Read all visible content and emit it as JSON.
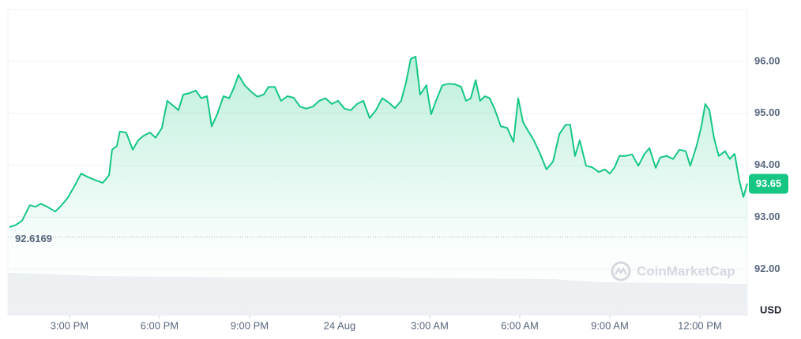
{
  "chart_data": {
    "type": "line",
    "color": "#16c784",
    "unit": "USD",
    "watermark": "CoinMarketCap",
    "open_price": 92.6169,
    "last_price": 93.65,
    "x": [
      13.0,
      13.21,
      13.42,
      13.68,
      13.87,
      14.05,
      14.26,
      14.53,
      14.74,
      14.95,
      15.18,
      15.39,
      15.63,
      15.84,
      16.11,
      16.32,
      16.42,
      16.58,
      16.68,
      16.89,
      17.11,
      17.29,
      17.47,
      17.68,
      17.87,
      18.08,
      18.26,
      18.47,
      18.63,
      18.79,
      19.0,
      19.21,
      19.39,
      19.58,
      19.74,
      19.92,
      20.13,
      20.32,
      20.47,
      20.63,
      20.84,
      21.05,
      21.26,
      21.47,
      21.63,
      21.84,
      22.05,
      22.26,
      22.47,
      22.68,
      22.89,
      23.11,
      23.32,
      23.53,
      23.74,
      23.95,
      24.16,
      24.37,
      24.58,
      24.79,
      25.0,
      25.21,
      25.42,
      25.63,
      25.84,
      26.05,
      26.21,
      26.37,
      26.53,
      26.68,
      26.89,
      27.05,
      27.21,
      27.42,
      27.63,
      27.84,
      28.05,
      28.21,
      28.37,
      28.53,
      28.68,
      28.84,
      29.0,
      29.16,
      29.37,
      29.58,
      29.79,
      29.95,
      30.11,
      30.26,
      30.47,
      30.68,
      30.89,
      31.11,
      31.32,
      31.53,
      31.68,
      31.84,
      32.0,
      32.21,
      32.42,
      32.63,
      32.84,
      33.0,
      33.16,
      33.32,
      33.53,
      33.74,
      33.95,
      34.16,
      34.32,
      34.53,
      34.68,
      34.89,
      35.11,
      35.32,
      35.53,
      35.68,
      35.89,
      36.05,
      36.18,
      36.32,
      36.47,
      36.63,
      36.84,
      37.0,
      37.16,
      37.32,
      37.45,
      37.58
    ],
    "values": [
      92.81,
      92.85,
      92.93,
      93.23,
      93.2,
      93.26,
      93.2,
      93.11,
      93.23,
      93.38,
      93.61,
      93.84,
      93.77,
      93.72,
      93.66,
      93.81,
      94.3,
      94.37,
      94.65,
      94.63,
      94.3,
      94.48,
      94.57,
      94.63,
      94.53,
      94.72,
      95.24,
      95.14,
      95.06,
      95.36,
      95.39,
      95.44,
      95.29,
      95.33,
      94.75,
      94.98,
      95.33,
      95.29,
      95.48,
      95.74,
      95.54,
      95.42,
      95.32,
      95.36,
      95.51,
      95.51,
      95.24,
      95.33,
      95.3,
      95.13,
      95.09,
      95.13,
      95.24,
      95.29,
      95.18,
      95.24,
      95.09,
      95.06,
      95.18,
      95.24,
      94.91,
      95.06,
      95.29,
      95.21,
      95.1,
      95.24,
      95.59,
      96.05,
      96.09,
      95.36,
      95.54,
      94.98,
      95.24,
      95.54,
      95.57,
      95.56,
      95.51,
      95.24,
      95.29,
      95.64,
      95.24,
      95.33,
      95.29,
      95.09,
      94.75,
      94.72,
      94.45,
      95.29,
      94.83,
      94.68,
      94.48,
      94.22,
      93.92,
      94.07,
      94.6,
      94.78,
      94.78,
      94.18,
      94.48,
      93.99,
      93.96,
      93.87,
      93.92,
      93.84,
      93.96,
      94.18,
      94.18,
      94.21,
      93.99,
      94.22,
      94.33,
      93.95,
      94.15,
      94.18,
      94.12,
      94.3,
      94.27,
      93.99,
      94.37,
      94.75,
      95.18,
      95.06,
      94.53,
      94.18,
      94.27,
      94.12,
      94.22,
      93.69,
      93.39,
      93.65
    ],
    "xlim": [
      12.95,
      37.58
    ],
    "xticks": [
      {
        "value": 15,
        "label": "3:00 PM"
      },
      {
        "value": 18,
        "label": "6:00 PM"
      },
      {
        "value": 21,
        "label": "9:00 PM"
      },
      {
        "value": 24,
        "label": "24 Aug"
      },
      {
        "value": 27,
        "label": "3:00 AM"
      },
      {
        "value": 30,
        "label": "6:00 AM"
      },
      {
        "value": 33,
        "label": "9:00 AM"
      },
      {
        "value": 36,
        "label": "12:00 PM"
      }
    ],
    "ylim": [
      91.11,
      97.0
    ],
    "yticks": [
      {
        "value": 92,
        "label": "92.00"
      },
      {
        "value": 93,
        "label": "93.00"
      },
      {
        "value": 94,
        "label": "94.00"
      },
      {
        "value": 95,
        "label": "95.00"
      },
      {
        "value": 96,
        "label": "96.00"
      }
    ],
    "grid": true
  }
}
